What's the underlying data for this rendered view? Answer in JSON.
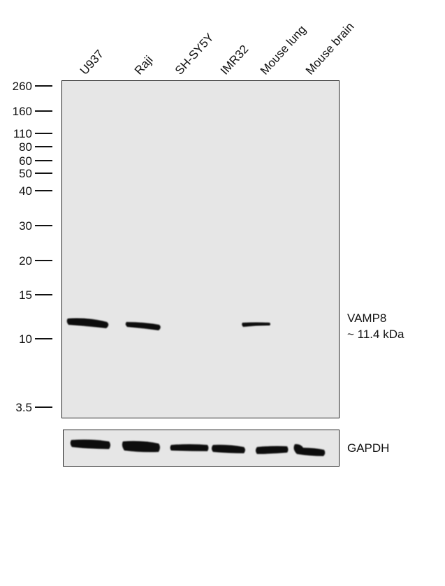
{
  "lanes": [
    "U937",
    "Raji",
    "SH-SY5Y",
    "IMR32",
    "Mouse lung",
    "Mouse brain"
  ],
  "markers": [
    "260",
    "160",
    "110",
    "80",
    "60",
    "50",
    "40",
    "30",
    "20",
    "15",
    "10",
    "3.5"
  ],
  "target": {
    "name": "VAMP8",
    "size": "~ 11.4 kDa"
  },
  "loading_control": "GAPDH"
}
